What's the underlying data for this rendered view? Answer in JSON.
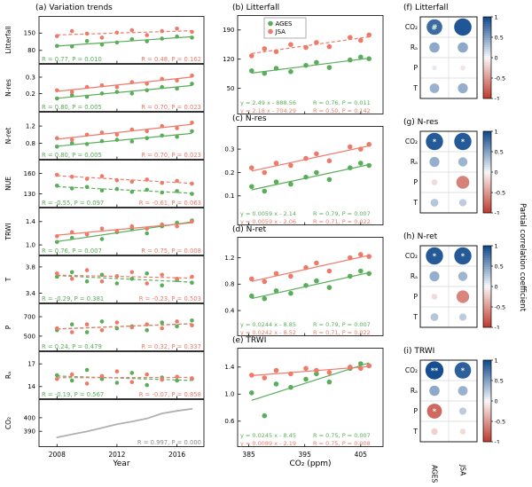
{
  "colors": {
    "green": "#5aad5a",
    "red": "#ee7a6a",
    "gray": "#b0b0b0",
    "stats_gray": "#8c8c8c"
  },
  "chart_data": {
    "type": "multi-panel",
    "series_names": {
      "green": "AGES",
      "red": "JSA"
    },
    "left_column": {
      "title": "(a) Variation trends",
      "xlabel": "Year",
      "x_ticks": [
        "2008",
        "2012",
        "2016"
      ],
      "x_tick_vals": [
        2008,
        2012,
        2016
      ],
      "x_range": [
        2006.8,
        2017.8
      ],
      "years": [
        2008,
        2009,
        2010,
        2011,
        2012,
        2013,
        2014,
        2015,
        2016,
        2017
      ],
      "rows": [
        {
          "label": "Litterfall",
          "y_ticks": [
            "150",
            "80"
          ],
          "y_range": [
            40,
            205
          ],
          "green_y": [
            98,
            96,
            118,
            104,
            112,
            125,
            117,
            128,
            136,
            132
          ],
          "red_y": [
            138,
            158,
            148,
            132,
            152,
            162,
            142,
            158,
            168,
            155
          ],
          "green_style": "solid",
          "red_style": "dashed",
          "green_stats": "R = 0.77, P = 0.010",
          "red_stats": "R = 0.48, P = 0.162"
        },
        {
          "label": "N-res",
          "y_ticks": [
            "0.3",
            "0.2"
          ],
          "y_range": [
            0.11,
            0.36
          ],
          "green_y": [
            0.17,
            0.19,
            0.18,
            0.2,
            0.21,
            0.2,
            0.22,
            0.24,
            0.23,
            0.26
          ],
          "red_y": [
            0.22,
            0.21,
            0.24,
            0.25,
            0.24,
            0.27,
            0.26,
            0.29,
            0.28,
            0.31
          ],
          "green_style": "solid",
          "red_style": "solid",
          "green_stats": "R = 0.80, P = 0.005",
          "red_stats": "R = 0.70, P = 0.023"
        },
        {
          "label": "N-ret",
          "y_ticks": [
            "1.2",
            "0.8"
          ],
          "y_range": [
            0.5,
            1.45
          ],
          "green_y": [
            0.72,
            0.8,
            0.78,
            0.85,
            0.88,
            0.84,
            0.92,
            0.98,
            0.95,
            1.08
          ],
          "red_y": [
            0.92,
            0.88,
            1.0,
            1.05,
            1.0,
            1.12,
            1.08,
            1.2,
            1.15,
            1.28
          ],
          "green_style": "solid",
          "red_style": "solid",
          "green_stats": "R = 0.80, P = 0.005",
          "red_stats": "R = 0.70, P = 0.023"
        },
        {
          "label": "NUE",
          "y_ticks": [
            "160",
            "130"
          ],
          "y_range": [
            115,
            175
          ],
          "green_y": [
            142,
            138,
            140,
            135,
            137,
            133,
            136,
            132,
            134,
            130
          ],
          "red_y": [
            158,
            155,
            152,
            156,
            150,
            148,
            151,
            146,
            149,
            145
          ],
          "green_style": "dashed",
          "red_style": "dashed",
          "green_stats": "R = -0.55, P = 0.097",
          "red_stats": "R = -0.61, P = 0.063"
        },
        {
          "label": "TRWI",
          "y_ticks": [
            "1.4",
            "1.0"
          ],
          "y_range": [
            0.88,
            1.58
          ],
          "green_y": [
            1.05,
            1.12,
            1.18,
            1.1,
            1.22,
            1.28,
            1.2,
            1.32,
            1.38,
            1.42
          ],
          "red_y": [
            1.15,
            1.22,
            1.18,
            1.28,
            1.24,
            1.32,
            1.28,
            1.35,
            1.32,
            1.4
          ],
          "green_style": "solid",
          "red_style": "solid",
          "green_stats": "R = 0.76, P = 0.007",
          "red_stats": "R = 0.75, P = 0.008"
        },
        {
          "label": "T",
          "y_ticks": [
            "3.8",
            "3.4"
          ],
          "y_range": [
            3.3,
            3.92
          ],
          "green_y": [
            3.65,
            3.72,
            3.58,
            3.68,
            3.55,
            3.62,
            3.7,
            3.52,
            3.6,
            3.56
          ],
          "red_y": [
            3.7,
            3.62,
            3.75,
            3.58,
            3.66,
            3.72,
            3.55,
            3.68,
            3.62,
            3.65
          ],
          "green_style": "dashed",
          "red_style": "dashed",
          "green_stats": "R = -0.29, P = 0.381",
          "red_stats": "R = -0.23, P = 0.503"
        },
        {
          "label": "P",
          "y_ticks": [
            "700",
            "500"
          ],
          "y_range": [
            380,
            800
          ],
          "green_y": [
            560,
            620,
            540,
            650,
            580,
            600,
            560,
            640,
            600,
            660
          ],
          "red_y": [
            580,
            540,
            620,
            560,
            640,
            590,
            620,
            580,
            650,
            610
          ],
          "green_style": "dashed",
          "red_style": "dashed",
          "green_stats": "R = 0.24, P = 0.479",
          "red_stats": "R = 0.32, P = 0.337"
        },
        {
          "label": "Rₐ",
          "y_ticks": [
            "17",
            "14"
          ],
          "y_range": [
            12.8,
            18.2
          ],
          "green_y": [
            15.5,
            14.8,
            16.2,
            15.0,
            14.5,
            15.8,
            14.2,
            15.2,
            14.8,
            15.0
          ],
          "red_y": [
            15.0,
            15.6,
            14.4,
            15.4,
            16.0,
            14.6,
            15.6,
            14.9,
            15.3,
            15.1
          ],
          "green_style": "dashed",
          "red_style": "dashed",
          "green_stats": "R = -0.19, P = 0.567",
          "red_stats": "R = -0.07, P = 0.858"
        },
        {
          "label": "CO₂",
          "y_ticks": [
            "400",
            "390"
          ],
          "y_range": [
            381,
            411
          ],
          "gray_y": [
            385.5,
            387.8,
            389.9,
            392.5,
            395.2,
            397.1,
            399.4,
            403.1,
            405.0,
            406.5
          ],
          "gray_stats": "R = 0.997, P = 0.000"
        }
      ]
    },
    "middle_column": {
      "xlabel": "CO₂ (ppm)",
      "x_ticks": [
        "385",
        "395",
        "405"
      ],
      "x_tick_vals": [
        385,
        395,
        405
      ],
      "x_range": [
        383,
        409
      ],
      "co2_x": [
        385.5,
        387.8,
        389.9,
        392.5,
        395.2,
        397.1,
        399.4,
        403.1,
        405.0,
        406.5
      ],
      "legend": [
        "AGES",
        "JSA"
      ],
      "panels": [
        {
          "title": "(b) Litterfall",
          "y_ticks": [
            "190",
            "120",
            "50"
          ],
          "y_range": [
            30,
            215
          ],
          "green_y": [
            92,
            86,
            98,
            90,
            105,
            112,
            100,
            118,
            125,
            121
          ],
          "red_y": [
            128,
            145,
            138,
            155,
            148,
            160,
            150,
            172,
            165,
            178
          ],
          "green_style": "solid",
          "red_style": "dashed",
          "green_eq": "y = 2.49 x - 888.56",
          "green_stats": "R = 0.76, P = 0.011",
          "red_eq": "y = 2.18 x - 704.29",
          "red_stats": "R = 0.50, P = 0.142"
        },
        {
          "title": "(c) N-res",
          "y_ticks": [
            "0.3",
            "0.2",
            "0.1"
          ],
          "y_range": [
            0.05,
            0.38
          ],
          "green_y": [
            0.14,
            0.12,
            0.16,
            0.15,
            0.18,
            0.2,
            0.17,
            0.22,
            0.24,
            0.23
          ],
          "red_y": [
            0.22,
            0.2,
            0.24,
            0.23,
            0.26,
            0.28,
            0.25,
            0.31,
            0.3,
            0.32
          ],
          "green_style": "solid",
          "red_style": "solid",
          "green_eq": "y = 0.0059 x - 2.14",
          "green_stats": "R = 0.79, P = 0.007",
          "red_eq": "y = 0.0059 x - 2.06",
          "red_stats": "R = 0.71, P = 0.022"
        },
        {
          "title": "(d) N-ret",
          "y_ticks": [
            "1.2",
            "0.8",
            "0.4"
          ],
          "y_range": [
            0.28,
            1.45
          ],
          "green_y": [
            0.62,
            0.58,
            0.7,
            0.66,
            0.78,
            0.85,
            0.75,
            0.92,
            1.0,
            0.96
          ],
          "red_y": [
            0.88,
            0.84,
            0.96,
            0.92,
            1.05,
            1.12,
            1.0,
            1.2,
            1.25,
            1.22
          ],
          "green_style": "solid",
          "red_style": "solid",
          "green_eq": "y = 0.0244 x - 8.85",
          "green_stats": "R = 0.79, P = 0.007",
          "red_eq": "y = 0.0242 x - 8.52",
          "red_stats": "R = 0.71, P = 0.022"
        },
        {
          "title": "(e) TRWI",
          "y_ticks": [
            "1.4",
            "1.0",
            "0.6"
          ],
          "y_range": [
            0.48,
            1.62
          ],
          "green_y": [
            1.02,
            0.68,
            1.15,
            1.1,
            1.22,
            1.3,
            1.18,
            1.38,
            1.45,
            1.42
          ],
          "red_y": [
            1.28,
            1.24,
            1.35,
            1.3,
            1.38,
            1.35,
            1.32,
            1.4,
            1.38,
            1.42
          ],
          "green_style": "solid",
          "red_style": "solid",
          "green_eq": "y = 0.0245 x - 8.45",
          "green_stats": "R = 0.75, P = 0.007",
          "red_eq": "y = 0.0089 x - 2.19",
          "red_stats": "R = 0.75, P = 0.008"
        }
      ]
    },
    "right_column": {
      "colorbar_label": "Partial correlation coefficient",
      "colorbar_ticks": [
        "1",
        "0.5",
        "0",
        "-0.5",
        "-1"
      ],
      "colorbar_tick_vals": [
        1,
        0.5,
        0,
        -0.5,
        -1
      ],
      "col_labels": [
        "AGES",
        "JSA"
      ],
      "row_labels": [
        "CO₂",
        "Rₐ",
        "P",
        "T"
      ],
      "panels": [
        {
          "title": "(f) Litterfall",
          "values": [
            [
              0.8,
              0.92
            ],
            [
              0.45,
              0.45
            ],
            [
              0.08,
              -0.1
            ],
            [
              0.4,
              0.42
            ]
          ],
          "marks": [
            [
              "#",
              ""
            ],
            [
              "",
              ""
            ],
            [
              "",
              ""
            ],
            [
              "",
              ""
            ]
          ]
        },
        {
          "title": "(g) N-res",
          "values": [
            [
              0.9,
              0.9
            ],
            [
              0.42,
              0.38
            ],
            [
              -0.15,
              -0.62
            ],
            [
              0.28,
              0.25
            ]
          ],
          "marks": [
            [
              "*",
              "*"
            ],
            [
              "",
              ""
            ],
            [
              "",
              ""
            ],
            [
              "",
              ""
            ]
          ]
        },
        {
          "title": "(h) N-ret",
          "values": [
            [
              0.9,
              0.9
            ],
            [
              0.42,
              0.38
            ],
            [
              -0.15,
              -0.6
            ],
            [
              0.28,
              0.25
            ]
          ],
          "marks": [
            [
              "*",
              "*"
            ],
            [
              "",
              ""
            ],
            [
              "",
              ""
            ],
            [
              "",
              ""
            ]
          ]
        },
        {
          "title": "(i) TRWI",
          "values": [
            [
              0.96,
              0.86
            ],
            [
              0.45,
              0.4
            ],
            [
              -0.75,
              0.25
            ],
            [
              -0.2,
              -0.15
            ]
          ],
          "marks": [
            [
              "**",
              "*"
            ],
            [
              "",
              ""
            ],
            [
              "*",
              ""
            ],
            [
              "",
              ""
            ]
          ]
        }
      ]
    }
  }
}
